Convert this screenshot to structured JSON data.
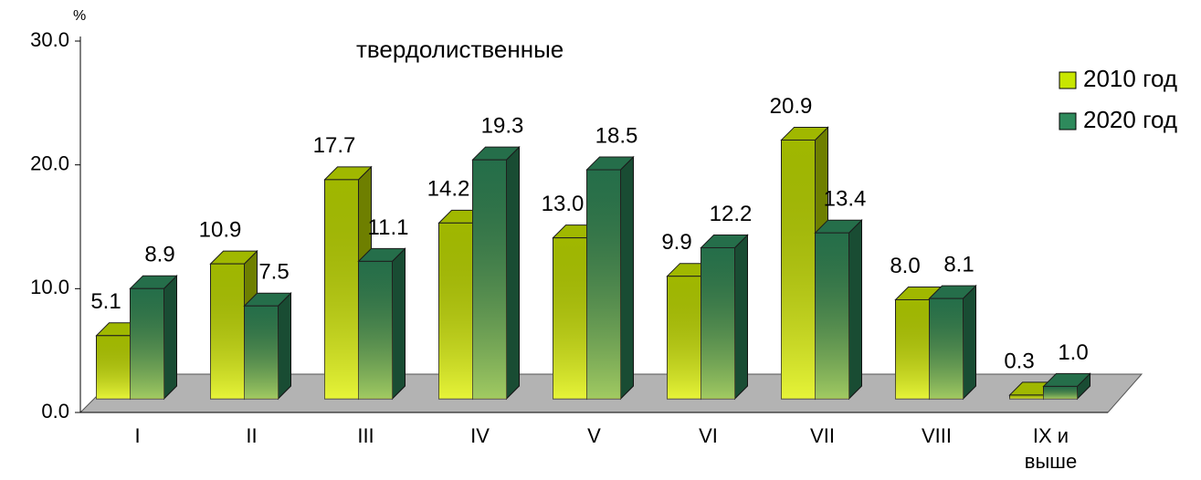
{
  "chart_data": {
    "type": "bar3d",
    "title": "твердолиственные",
    "y_unit": "%",
    "categories": [
      "I",
      "II",
      "III",
      "IV",
      "V",
      "VI",
      "VII",
      "VIII",
      "IX и выше"
    ],
    "series": [
      {
        "name": "2010 год",
        "color": "#c8e600",
        "values": [
          5.1,
          10.9,
          17.7,
          14.2,
          13.0,
          9.9,
          20.9,
          8.0,
          0.3
        ],
        "value_labels": [
          "5.1",
          "10.9",
          "17.7",
          "14.2",
          "13.0",
          "9.9",
          "20.9",
          "8.0",
          "0.3"
        ]
      },
      {
        "name": "2020 год",
        "color": "#2e8a5c",
        "values": [
          8.9,
          7.5,
          11.1,
          19.3,
          18.5,
          12.2,
          13.4,
          8.1,
          1.0
        ],
        "value_labels": [
          "8.9",
          "7.5",
          "11.1",
          "19.3",
          "18.5",
          "12.2",
          "13.4",
          "8.1",
          "1.0"
        ]
      }
    ],
    "ylim": [
      0,
      30
    ],
    "yticks": [
      {
        "value": 0,
        "label": "0.0"
      },
      {
        "value": 10,
        "label": "10.0"
      },
      {
        "value": 20,
        "label": "20.0"
      },
      {
        "value": 30,
        "label": "30.0"
      }
    ],
    "legend": "top-right"
  }
}
